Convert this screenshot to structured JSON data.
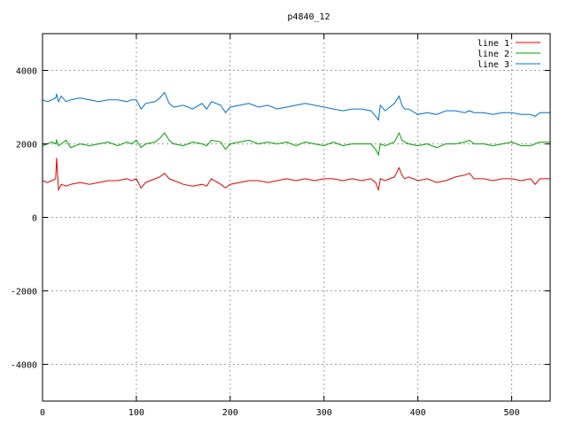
{
  "chart_data": {
    "type": "line",
    "title": "p4840_12",
    "xlabel": "",
    "ylabel": "",
    "xlim": [
      0,
      541
    ],
    "ylim": [
      -5000,
      5000
    ],
    "xticks": [
      0,
      100,
      200,
      300,
      400,
      500
    ],
    "xtick_labels": [
      "0",
      "100",
      "200",
      "300",
      "400",
      "500"
    ],
    "yticks": [
      -4000,
      -2000,
      0,
      2000,
      4000
    ],
    "ytick_labels": [
      "-4000",
      "-2000",
      "0",
      "2000",
      "4000"
    ],
    "grid": true,
    "legend_position": "top-right",
    "x": [
      0,
      5,
      10,
      14,
      15,
      17,
      20,
      25,
      30,
      40,
      50,
      60,
      70,
      80,
      90,
      95,
      100,
      105,
      110,
      120,
      125,
      130,
      135,
      140,
      150,
      160,
      170,
      175,
      180,
      190,
      195,
      200,
      210,
      220,
      230,
      240,
      250,
      260,
      270,
      280,
      290,
      300,
      310,
      320,
      330,
      340,
      350,
      355,
      358,
      360,
      365,
      370,
      375,
      380,
      383,
      386,
      390,
      400,
      410,
      420,
      430,
      440,
      450,
      455,
      460,
      470,
      480,
      490,
      500,
      510,
      520,
      525,
      530,
      541
    ],
    "series": [
      {
        "name": "line 1",
        "color": "#e60000",
        "values": [
          1000,
          950,
          1000,
          1050,
          1620,
          750,
          900,
          850,
          900,
          950,
          900,
          950,
          1000,
          1000,
          1050,
          1000,
          1050,
          800,
          950,
          1050,
          1100,
          1200,
          1050,
          1000,
          900,
          850,
          900,
          850,
          1050,
          900,
          800,
          900,
          950,
          1000,
          1000,
          950,
          1000,
          1050,
          1000,
          1050,
          1000,
          1050,
          1050,
          1000,
          1050,
          1000,
          1050,
          950,
          750,
          1050,
          1000,
          1050,
          1100,
          1350,
          1150,
          1050,
          1100,
          1000,
          1050,
          950,
          1000,
          1100,
          1150,
          1200,
          1050,
          1050,
          1000,
          1050,
          1050,
          1000,
          1050,
          900,
          1050,
          1050
        ]
      },
      {
        "name": "line 2",
        "color": "#00a000",
        "values": [
          1950,
          2000,
          2050,
          2000,
          2100,
          1950,
          2000,
          2100,
          1900,
          2000,
          1950,
          2000,
          2050,
          1950,
          2050,
          2000,
          2100,
          1900,
          2000,
          2050,
          2150,
          2300,
          2100,
          2000,
          1950,
          2050,
          2000,
          1950,
          2100,
          2050,
          1850,
          2000,
          2050,
          2100,
          2000,
          2050,
          2000,
          2050,
          1950,
          2050,
          2000,
          1950,
          2050,
          1950,
          2000,
          2000,
          2000,
          1850,
          1700,
          2000,
          1950,
          2000,
          2050,
          2300,
          2100,
          2050,
          2000,
          1950,
          2000,
          1900,
          2000,
          2000,
          2050,
          2100,
          2000,
          2000,
          1950,
          2000,
          2050,
          1950,
          1950,
          2000,
          2050,
          2050
        ]
      },
      {
        "name": "line 3",
        "color": "#0070d0",
        "values": [
          3200,
          3150,
          3200,
          3250,
          3350,
          3150,
          3300,
          3150,
          3200,
          3250,
          3200,
          3150,
          3200,
          3200,
          3150,
          3200,
          3200,
          2950,
          3100,
          3150,
          3250,
          3400,
          3100,
          3000,
          3050,
          2950,
          3100,
          2950,
          3150,
          3050,
          2850,
          3000,
          3050,
          3100,
          3000,
          3050,
          2950,
          3000,
          3050,
          3100,
          3050,
          3000,
          2950,
          2900,
          2950,
          2950,
          2900,
          2750,
          2650,
          3050,
          2900,
          3000,
          3100,
          3300,
          3050,
          2950,
          2950,
          2800,
          2850,
          2800,
          2900,
          2900,
          2850,
          2900,
          2850,
          2850,
          2800,
          2850,
          2850,
          2800,
          2800,
          2750,
          2850,
          2850
        ]
      }
    ]
  }
}
